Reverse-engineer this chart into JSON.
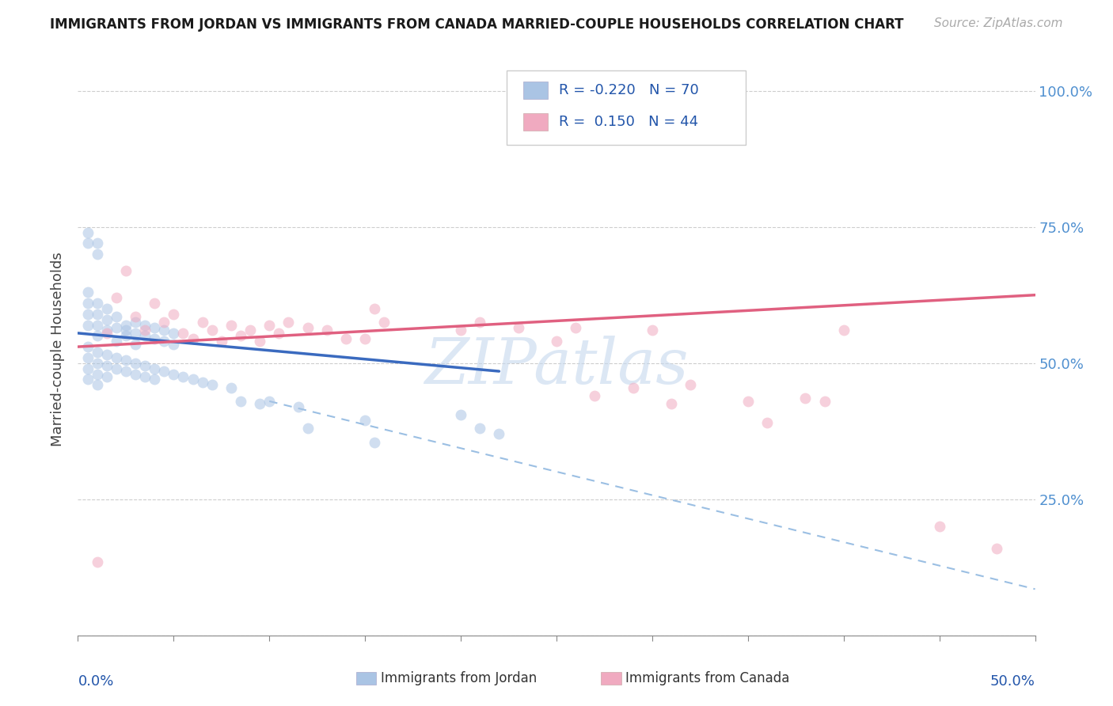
{
  "title": "IMMIGRANTS FROM JORDAN VS IMMIGRANTS FROM CANADA MARRIED-COUPLE HOUSEHOLDS CORRELATION CHART",
  "source": "Source: ZipAtlas.com",
  "ylabel": "Married-couple Households",
  "legend_jordan": {
    "label": "Immigrants from Jordan",
    "R": -0.22,
    "N": 70,
    "color": "#aac4e4"
  },
  "legend_canada": {
    "label": "Immigrants from Canada",
    "R": 0.15,
    "N": 44,
    "color": "#f0aac0"
  },
  "background_color": "#ffffff",
  "jordan_dots": [
    [
      0.005,
      0.57
    ],
    [
      0.005,
      0.59
    ],
    [
      0.005,
      0.61
    ],
    [
      0.005,
      0.63
    ],
    [
      0.01,
      0.55
    ],
    [
      0.01,
      0.57
    ],
    [
      0.01,
      0.59
    ],
    [
      0.01,
      0.61
    ],
    [
      0.005,
      0.72
    ],
    [
      0.005,
      0.74
    ],
    [
      0.01,
      0.7
    ],
    [
      0.01,
      0.72
    ],
    [
      0.015,
      0.56
    ],
    [
      0.015,
      0.58
    ],
    [
      0.015,
      0.6
    ],
    [
      0.02,
      0.565
    ],
    [
      0.02,
      0.585
    ],
    [
      0.02,
      0.54
    ],
    [
      0.025,
      0.57
    ],
    [
      0.025,
      0.55
    ],
    [
      0.025,
      0.56
    ],
    [
      0.03,
      0.575
    ],
    [
      0.03,
      0.555
    ],
    [
      0.03,
      0.535
    ],
    [
      0.035,
      0.57
    ],
    [
      0.035,
      0.55
    ],
    [
      0.04,
      0.565
    ],
    [
      0.04,
      0.545
    ],
    [
      0.045,
      0.56
    ],
    [
      0.045,
      0.54
    ],
    [
      0.05,
      0.555
    ],
    [
      0.05,
      0.535
    ],
    [
      0.005,
      0.53
    ],
    [
      0.005,
      0.51
    ],
    [
      0.005,
      0.49
    ],
    [
      0.005,
      0.47
    ],
    [
      0.01,
      0.52
    ],
    [
      0.01,
      0.5
    ],
    [
      0.01,
      0.48
    ],
    [
      0.01,
      0.46
    ],
    [
      0.015,
      0.515
    ],
    [
      0.015,
      0.495
    ],
    [
      0.015,
      0.475
    ],
    [
      0.02,
      0.51
    ],
    [
      0.02,
      0.49
    ],
    [
      0.025,
      0.505
    ],
    [
      0.025,
      0.485
    ],
    [
      0.03,
      0.5
    ],
    [
      0.03,
      0.48
    ],
    [
      0.035,
      0.495
    ],
    [
      0.035,
      0.475
    ],
    [
      0.04,
      0.49
    ],
    [
      0.04,
      0.47
    ],
    [
      0.045,
      0.485
    ],
    [
      0.05,
      0.48
    ],
    [
      0.055,
      0.475
    ],
    [
      0.06,
      0.47
    ],
    [
      0.065,
      0.465
    ],
    [
      0.07,
      0.46
    ],
    [
      0.08,
      0.455
    ],
    [
      0.085,
      0.43
    ],
    [
      0.095,
      0.425
    ],
    [
      0.1,
      0.43
    ],
    [
      0.115,
      0.42
    ],
    [
      0.12,
      0.38
    ],
    [
      0.15,
      0.395
    ],
    [
      0.155,
      0.355
    ],
    [
      0.2,
      0.405
    ],
    [
      0.21,
      0.38
    ],
    [
      0.22,
      0.37
    ]
  ],
  "canada_dots": [
    [
      0.01,
      0.135
    ],
    [
      0.015,
      0.555
    ],
    [
      0.02,
      0.62
    ],
    [
      0.025,
      0.67
    ],
    [
      0.03,
      0.585
    ],
    [
      0.035,
      0.56
    ],
    [
      0.04,
      0.61
    ],
    [
      0.045,
      0.575
    ],
    [
      0.05,
      0.59
    ],
    [
      0.055,
      0.555
    ],
    [
      0.06,
      0.545
    ],
    [
      0.065,
      0.575
    ],
    [
      0.07,
      0.56
    ],
    [
      0.075,
      0.54
    ],
    [
      0.08,
      0.57
    ],
    [
      0.085,
      0.55
    ],
    [
      0.09,
      0.56
    ],
    [
      0.095,
      0.54
    ],
    [
      0.1,
      0.57
    ],
    [
      0.105,
      0.555
    ],
    [
      0.11,
      0.575
    ],
    [
      0.12,
      0.565
    ],
    [
      0.13,
      0.56
    ],
    [
      0.14,
      0.545
    ],
    [
      0.15,
      0.545
    ],
    [
      0.155,
      0.6
    ],
    [
      0.16,
      0.575
    ],
    [
      0.2,
      0.56
    ],
    [
      0.21,
      0.575
    ],
    [
      0.23,
      0.565
    ],
    [
      0.25,
      0.54
    ],
    [
      0.26,
      0.565
    ],
    [
      0.27,
      0.44
    ],
    [
      0.29,
      0.455
    ],
    [
      0.3,
      0.56
    ],
    [
      0.31,
      0.425
    ],
    [
      0.32,
      0.46
    ],
    [
      0.35,
      0.43
    ],
    [
      0.36,
      0.39
    ],
    [
      0.38,
      0.435
    ],
    [
      0.39,
      0.43
    ],
    [
      0.4,
      0.56
    ],
    [
      0.45,
      0.2
    ],
    [
      0.48,
      0.16
    ]
  ],
  "xmin": 0.0,
  "xmax": 0.5,
  "ymin": 0.0,
  "ymax": 1.05,
  "jordan_line": {
    "x0": 0.0,
    "y0": 0.555,
    "x1": 0.22,
    "y1": 0.485
  },
  "canada_line": {
    "x0": 0.0,
    "y0": 0.53,
    "x1": 0.5,
    "y1": 0.625
  },
  "dashed_line": {
    "x0": 0.1,
    "y0": 0.43,
    "x1": 0.5,
    "y1": 0.085
  },
  "jordan_R": -0.22,
  "canada_R": 0.15,
  "jordan_N": 70,
  "canada_N": 44,
  "dot_size": 100,
  "dot_alpha": 0.55,
  "line_color_jordan": "#3a6abf",
  "line_color_canada": "#e06080",
  "dashed_line_color": "#90b8e0",
  "watermark": "ZIPatlas",
  "xtick_vals": [
    0.0,
    0.05,
    0.1,
    0.15,
    0.2,
    0.25,
    0.3,
    0.35,
    0.4,
    0.45,
    0.5
  ],
  "ytick_vals": [
    0.0,
    0.25,
    0.5,
    0.75,
    1.0
  ]
}
